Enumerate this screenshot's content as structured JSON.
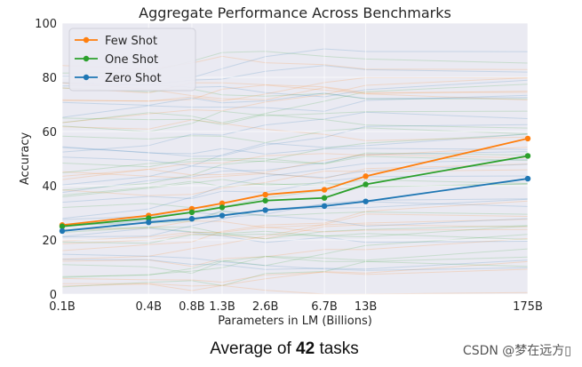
{
  "chart_data": {
    "type": "line",
    "title": "Aggregate Performance Across Benchmarks",
    "xlabel": "Parameters in LM (Billions)",
    "ylabel": "Accuracy",
    "ylim": [
      0,
      100
    ],
    "yticks": [
      0,
      20,
      40,
      60,
      80,
      100
    ],
    "x_params_billions": [
      0.1,
      0.4,
      0.8,
      1.3,
      2.6,
      6.7,
      13,
      175
    ],
    "categories": [
      "0.1B",
      "0.4B",
      "0.8B",
      "1.3B",
      "2.6B",
      "6.7B",
      "13B",
      "175B"
    ],
    "grid": true,
    "legend_position": "top-left",
    "series": [
      {
        "name": "Few Shot",
        "color": "#ff7f0e",
        "values": [
          25.5,
          29.0,
          31.5,
          33.5,
          36.7,
          38.5,
          43.5,
          57.4
        ]
      },
      {
        "name": "One Shot",
        "color": "#2ca02c",
        "values": [
          25.0,
          28.0,
          30.2,
          32.0,
          34.5,
          35.5,
          40.5,
          51.0
        ]
      },
      {
        "name": "Zero Shot",
        "color": "#1f77b4",
        "values": [
          23.3,
          26.5,
          27.8,
          29.0,
          31.0,
          32.5,
          34.2,
          42.6
        ]
      }
    ],
    "background_series_colors": [
      "#ff7f0e",
      "#2ca02c",
      "#1f77b4"
    ]
  },
  "caption": {
    "prefix": "Average of ",
    "count": "42",
    "suffix": " tasks"
  },
  "watermark": "CSDN @梦在远方▯"
}
